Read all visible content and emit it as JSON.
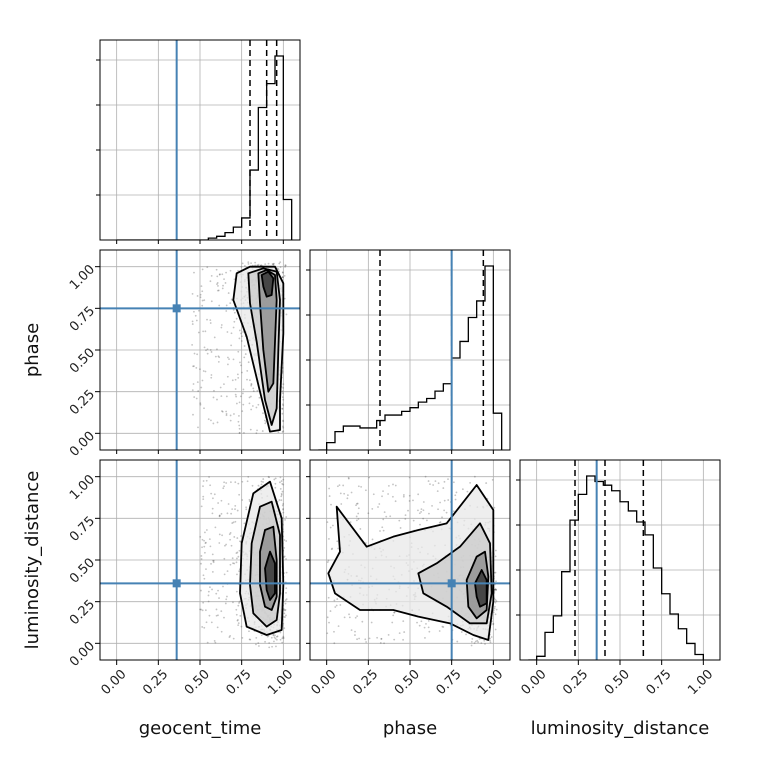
{
  "chart_data": {
    "type": "corner",
    "parameters": [
      "geocent_time",
      "phase",
      "luminosity_distance"
    ],
    "truths": [
      0.36,
      0.75,
      0.36
    ],
    "truth_color": "#4682b4",
    "axis_range": [
      -0.1,
      1.1
    ],
    "ticks": [
      0.0,
      0.25,
      0.5,
      0.75,
      1.0
    ],
    "tick_labels": [
      "0.00",
      "0.25",
      "0.50",
      "0.75",
      "1.00"
    ],
    "grid": true,
    "histograms": [
      {
        "param": "geocent_time",
        "bin_edges": [
          0.0,
          0.05,
          0.1,
          0.15,
          0.2,
          0.25,
          0.3,
          0.35,
          0.4,
          0.45,
          0.5,
          0.55,
          0.6,
          0.65,
          0.7,
          0.75,
          0.8,
          0.85,
          0.9,
          0.95,
          1.0,
          1.05
        ],
        "counts": [
          0,
          0,
          0,
          0,
          0,
          0,
          0,
          0,
          0,
          0,
          0,
          0.01,
          0.02,
          0.04,
          0.07,
          0.12,
          0.38,
          0.72,
          0.85,
          1.0,
          0.22
        ],
        "quantiles": [
          0.8,
          0.9,
          0.96
        ]
      },
      {
        "param": "phase",
        "bin_edges": [
          -0.05,
          0.0,
          0.05,
          0.1,
          0.15,
          0.2,
          0.25,
          0.3,
          0.35,
          0.4,
          0.45,
          0.5,
          0.55,
          0.6,
          0.65,
          0.7,
          0.75,
          0.8,
          0.85,
          0.9,
          0.95,
          1.0,
          1.05
        ],
        "counts": [
          0,
          0.04,
          0.1,
          0.13,
          0.13,
          0.12,
          0.12,
          0.16,
          0.19,
          0.19,
          0.21,
          0.23,
          0.26,
          0.28,
          0.32,
          0.36,
          0.5,
          0.59,
          0.72,
          0.81,
          1.0,
          0.2
        ],
        "quantiles": [
          0.32,
          0.75,
          0.94
        ]
      },
      {
        "param": "luminosity_distance",
        "bin_edges": [
          -0.05,
          0.0,
          0.05,
          0.1,
          0.15,
          0.2,
          0.25,
          0.3,
          0.35,
          0.4,
          0.45,
          0.5,
          0.55,
          0.6,
          0.65,
          0.7,
          0.75,
          0.8,
          0.85,
          0.9,
          0.95,
          1.0
        ],
        "counts": [
          0,
          0.02,
          0.15,
          0.24,
          0.48,
          0.76,
          0.9,
          1.0,
          0.97,
          0.95,
          0.92,
          0.86,
          0.81,
          0.75,
          0.68,
          0.5,
          0.36,
          0.25,
          0.17,
          0.09,
          0.03
        ],
        "quantiles": [
          0.23,
          0.41,
          0.64
        ]
      }
    ],
    "densities_2d": [
      {
        "x": "geocent_time",
        "y": "phase",
        "scatter_x_range": [
          0.45,
          1.0
        ],
        "scatter_y_range": [
          0.0,
          1.0
        ],
        "peak": [
          0.9,
          0.95
        ],
        "contours": [
          [
            [
              0.72,
              0.96
            ],
            [
              0.8,
              1.0
            ],
            [
              0.95,
              1.0
            ],
            [
              1.0,
              0.9
            ],
            [
              1.0,
              0.6
            ],
            [
              0.98,
              0.2
            ],
            [
              0.98,
              0.02
            ],
            [
              0.92,
              0.01
            ],
            [
              0.86,
              0.25
            ],
            [
              0.78,
              0.58
            ],
            [
              0.7,
              0.8
            ]
          ],
          [
            [
              0.79,
              0.96
            ],
            [
              0.88,
              0.99
            ],
            [
              0.96,
              0.97
            ],
            [
              0.98,
              0.8
            ],
            [
              0.97,
              0.5
            ],
            [
              0.96,
              0.15
            ],
            [
              0.93,
              0.05
            ],
            [
              0.89,
              0.2
            ],
            [
              0.84,
              0.55
            ],
            [
              0.8,
              0.78
            ]
          ],
          [
            [
              0.85,
              0.96
            ],
            [
              0.9,
              0.98
            ],
            [
              0.95,
              0.95
            ],
            [
              0.96,
              0.8
            ],
            [
              0.95,
              0.55
            ],
            [
              0.94,
              0.3
            ],
            [
              0.91,
              0.25
            ],
            [
              0.88,
              0.5
            ],
            [
              0.86,
              0.78
            ]
          ],
          [
            [
              0.87,
              0.95
            ],
            [
              0.91,
              0.97
            ],
            [
              0.94,
              0.93
            ],
            [
              0.93,
              0.83
            ],
            [
              0.9,
              0.82
            ],
            [
              0.88,
              0.88
            ]
          ]
        ]
      },
      {
        "x": "geocent_time",
        "y": "luminosity_distance",
        "scatter_x_range": [
          0.5,
          1.0
        ],
        "scatter_y_range": [
          0.0,
          1.0
        ],
        "peak": [
          0.92,
          0.38
        ],
        "contours": [
          [
            [
              0.75,
              0.6
            ],
            [
              0.82,
              0.9
            ],
            [
              0.92,
              0.97
            ],
            [
              0.99,
              0.75
            ],
            [
              1.0,
              0.35
            ],
            [
              0.99,
              0.08
            ],
            [
              0.9,
              0.05
            ],
            [
              0.78,
              0.1
            ],
            [
              0.74,
              0.3
            ]
          ],
          [
            [
              0.81,
              0.6
            ],
            [
              0.86,
              0.82
            ],
            [
              0.93,
              0.85
            ],
            [
              0.98,
              0.65
            ],
            [
              0.98,
              0.3
            ],
            [
              0.96,
              0.14
            ],
            [
              0.9,
              0.1
            ],
            [
              0.82,
              0.18
            ],
            [
              0.8,
              0.35
            ]
          ],
          [
            [
              0.86,
              0.55
            ],
            [
              0.89,
              0.68
            ],
            [
              0.94,
              0.7
            ],
            [
              0.96,
              0.5
            ],
            [
              0.96,
              0.28
            ],
            [
              0.93,
              0.2
            ],
            [
              0.89,
              0.22
            ],
            [
              0.86,
              0.35
            ]
          ],
          [
            [
              0.89,
              0.45
            ],
            [
              0.92,
              0.55
            ],
            [
              0.95,
              0.48
            ],
            [
              0.95,
              0.3
            ],
            [
              0.92,
              0.26
            ],
            [
              0.9,
              0.32
            ]
          ]
        ]
      },
      {
        "x": "phase",
        "y": "luminosity_distance",
        "scatter_x_range": [
          0.0,
          1.0
        ],
        "scatter_y_range": [
          0.0,
          1.0
        ],
        "peak": [
          0.95,
          0.32
        ],
        "contours": [
          [
            [
              0.01,
              0.42
            ],
            [
              0.08,
              0.55
            ],
            [
              0.06,
              0.82
            ],
            [
              0.15,
              0.7
            ],
            [
              0.24,
              0.58
            ],
            [
              0.4,
              0.64
            ],
            [
              0.55,
              0.68
            ],
            [
              0.72,
              0.72
            ],
            [
              0.9,
              0.95
            ],
            [
              1.0,
              0.8
            ],
            [
              1.0,
              0.25
            ],
            [
              0.97,
              0.02
            ],
            [
              0.88,
              0.05
            ],
            [
              0.74,
              0.12
            ],
            [
              0.55,
              0.16
            ],
            [
              0.4,
              0.2
            ],
            [
              0.2,
              0.2
            ],
            [
              0.05,
              0.3
            ]
          ],
          [
            [
              0.55,
              0.42
            ],
            [
              0.66,
              0.48
            ],
            [
              0.8,
              0.58
            ],
            [
              0.92,
              0.72
            ],
            [
              0.98,
              0.6
            ],
            [
              0.99,
              0.3
            ],
            [
              0.96,
              0.12
            ],
            [
              0.86,
              0.12
            ],
            [
              0.72,
              0.22
            ],
            [
              0.58,
              0.3
            ]
          ],
          [
            [
              0.84,
              0.38
            ],
            [
              0.9,
              0.52
            ],
            [
              0.95,
              0.55
            ],
            [
              0.97,
              0.4
            ],
            [
              0.96,
              0.2
            ],
            [
              0.9,
              0.15
            ],
            [
              0.85,
              0.22
            ]
          ],
          [
            [
              0.89,
              0.36
            ],
            [
              0.93,
              0.44
            ],
            [
              0.96,
              0.38
            ],
            [
              0.96,
              0.24
            ],
            [
              0.92,
              0.22
            ],
            [
              0.9,
              0.28
            ]
          ]
        ]
      }
    ]
  }
}
